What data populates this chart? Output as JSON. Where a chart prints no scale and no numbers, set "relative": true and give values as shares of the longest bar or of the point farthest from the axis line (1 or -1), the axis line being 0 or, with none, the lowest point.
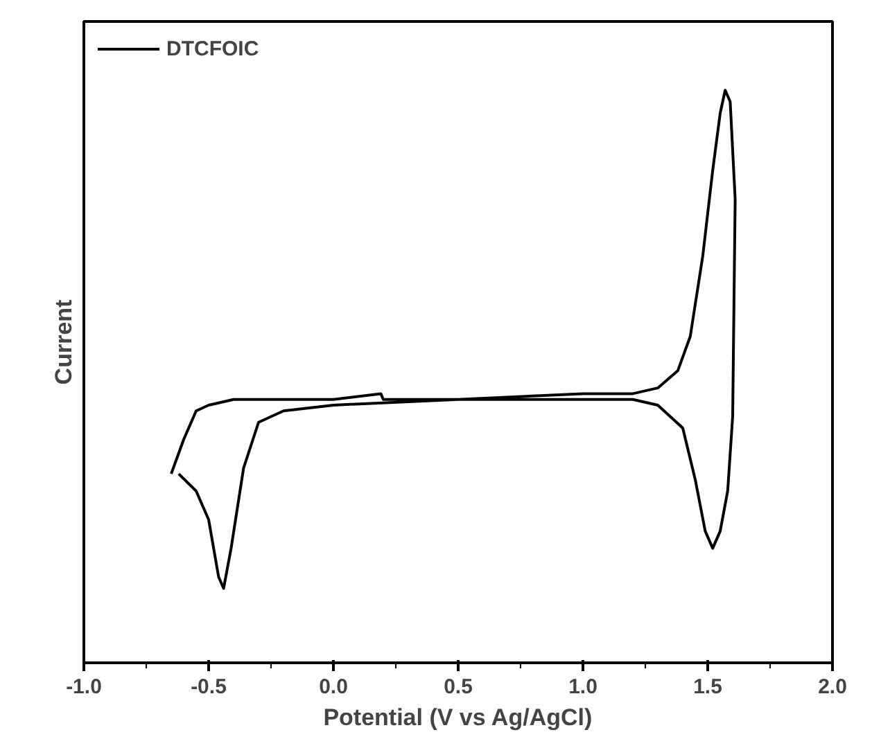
{
  "chart_data": {
    "type": "line",
    "relative": true,
    "xlabel": "Potential (V vs Ag/AgCl)",
    "ylabel": "Current",
    "xlim": [
      -1.0,
      2.0
    ],
    "xticks": [
      {
        "value": -1.0,
        "label": "-1.0"
      },
      -0.5,
      {
        "value": 0,
        "label": "0.0"
      },
      0.5,
      {
        "value": 1,
        "label": "1.0"
      },
      1.5,
      {
        "value": 2,
        "label": "2.0"
      }
    ],
    "grid": false,
    "legend": "top left",
    "line_style": "solid",
    "marker": "none",
    "series": [
      {
        "name": "DTCFOIC",
        "color": "#000000",
        "x": [
          -0.65,
          -0.6,
          -0.55,
          -0.5,
          -0.4,
          -0.2,
          0.0,
          0.19,
          0.2,
          0.5,
          1.0,
          1.2,
          1.3,
          1.38,
          1.43,
          1.48,
          1.52,
          1.55,
          1.57,
          1.59,
          1.61,
          1.6,
          1.58,
          1.55,
          1.52,
          1.49,
          1.45,
          1.4,
          1.3,
          1.2,
          0.5,
          0.0,
          -0.2,
          -0.3,
          -0.36,
          -0.41,
          -0.44,
          -0.46,
          -0.5,
          -0.55,
          -0.62
        ],
        "values": [
          0.33,
          0.39,
          0.44,
          0.45,
          0.46,
          0.46,
          0.46,
          0.47,
          0.46,
          0.46,
          0.47,
          0.47,
          0.48,
          0.51,
          0.57,
          0.71,
          0.86,
          0.96,
          1.0,
          0.98,
          0.81,
          0.43,
          0.3,
          0.23,
          0.2,
          0.23,
          0.32,
          0.41,
          0.45,
          0.46,
          0.46,
          0.45,
          0.44,
          0.42,
          0.34,
          0.2,
          0.13,
          0.15,
          0.25,
          0.3,
          0.33
        ]
      }
    ]
  }
}
